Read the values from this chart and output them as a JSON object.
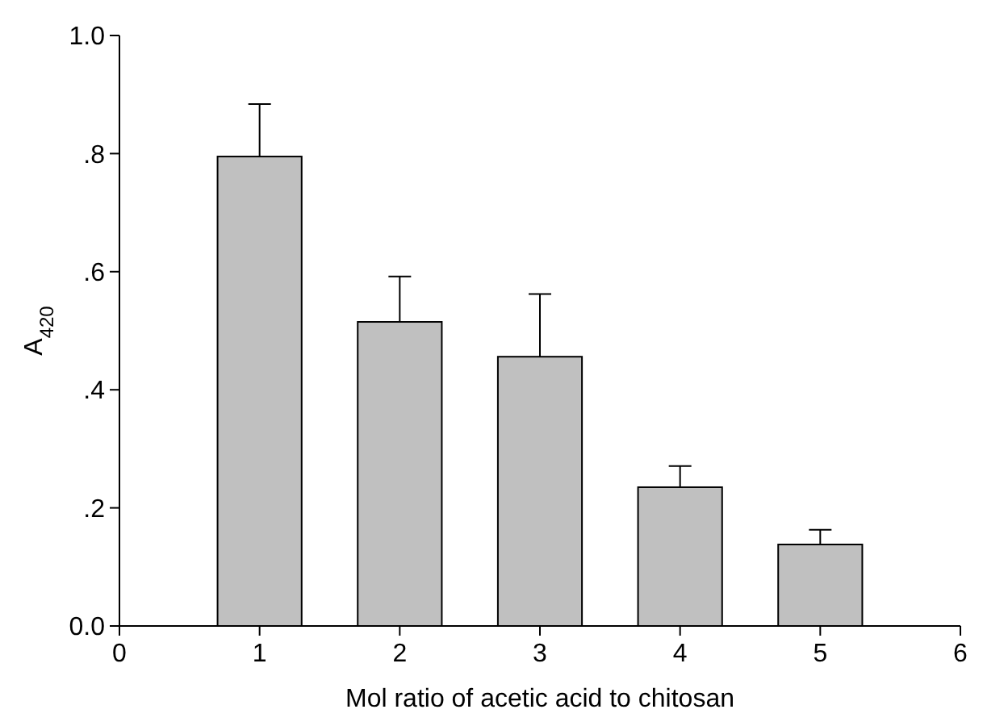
{
  "chart_data": {
    "type": "bar",
    "xlabel": "Mol ratio of acetic acid to chitosan",
    "ylabel": "A$_{420}$",
    "x": [
      1,
      2,
      3,
      4,
      5
    ],
    "values": [
      0.795,
      0.515,
      0.456,
      0.235,
      0.138
    ],
    "errors": [
      [
        0.795,
        0.884
      ],
      [
        0.515,
        0.592
      ],
      [
        0.456,
        0.562
      ],
      [
        0.235,
        0.271
      ],
      [
        0.138,
        0.163
      ]
    ],
    "color": "#c0c0c0",
    "xlim": [
      0,
      6
    ],
    "xticks": [
      0,
      1,
      2,
      3,
      4,
      5,
      6
    ],
    "ylim": [
      0,
      1
    ],
    "yticks": [
      {
        "value": 0,
        "label": "0.0"
      },
      {
        "value": 0.2,
        "label": ".2"
      },
      {
        "value": 0.4,
        "label": ".4"
      },
      {
        "value": 0.6,
        "label": ".6"
      },
      {
        "value": 0.8,
        "label": ".8"
      },
      {
        "value": 1,
        "label": "1.0"
      }
    ],
    "grid": false
  }
}
